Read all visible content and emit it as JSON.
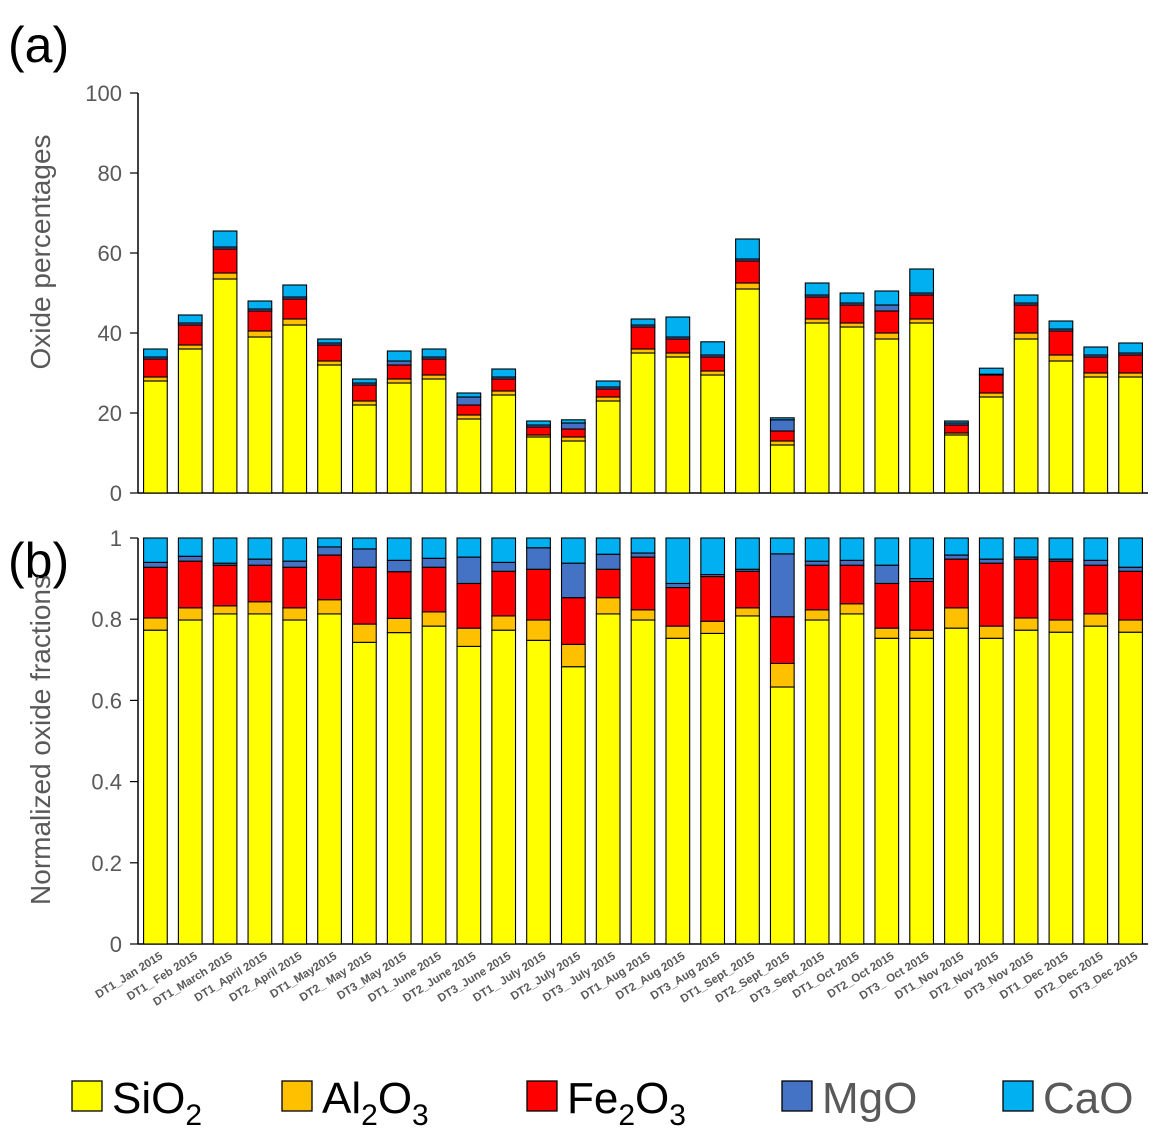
{
  "panel_labels": {
    "a": "(a)",
    "b": "(b)"
  },
  "legend": [
    {
      "label": "SiO",
      "sub": "2",
      "after": "",
      "color": "#FFFF00"
    },
    {
      "label": "Al",
      "sub": "2",
      "after": "O",
      "sub2": "3",
      "color": "#FFC000"
    },
    {
      "label": "Fe",
      "sub": "2",
      "after": "O",
      "sub2": "3",
      "color": "#FF0000"
    },
    {
      "label": "MgO",
      "sub": "",
      "after": "",
      "color": "#4472C4"
    },
    {
      "label": "CaO",
      "sub": "",
      "after": "",
      "color": "#00B0F0"
    }
  ],
  "chart_data": [
    {
      "type": "bar",
      "stacked": true,
      "panel": "(a)",
      "ylabel": "Oxide percentages",
      "xlabel": "",
      "ylim": [
        0,
        100
      ],
      "yticks": [
        0,
        20,
        40,
        60,
        80,
        100
      ],
      "categories": [
        "DT1_Jan 2015",
        "DT1_ Feb 2015",
        "DT1_March 2015",
        "DT1_April 2015",
        "DT2_April 2015",
        "DT1_May2015",
        "DT2_ May 2015",
        "DT3_May 2015",
        "DT1_June 2015",
        "DT2_June 2015",
        "DT3_June 2015",
        "DT1_ July 2015",
        "DT2_July 2015",
        "DT3_ July 2015",
        "DT1_Aug 2015",
        "DT2_Aug 2015",
        "DT3_Aug 2015",
        "DT1_Sept_2015",
        "DT2_Sept_2015",
        "DT3_Sept_2015",
        "DT1_Oct 2015",
        "DT2_Oct 2015",
        "DT3_ Oct 2015",
        "DT1_Nov 2015",
        "DT2_Nov 2015",
        "DT3_Nov 2015",
        "DT1_Dec 2015",
        "DT2_Dec 2015",
        "DT3_Dec 2015"
      ],
      "series": [
        {
          "name": "SiO2",
          "values": [
            28,
            36,
            53.5,
            39,
            42,
            32,
            22,
            27.5,
            28.5,
            18.5,
            24.5,
            14,
            13,
            23,
            35,
            34,
            29.5,
            51,
            12,
            42.5,
            41.5,
            38.5,
            42.5,
            14.5,
            24,
            38.5,
            33,
            29,
            29
          ]
        },
        {
          "name": "Al2O3",
          "values": [
            1,
            1,
            1.5,
            1.5,
            1.5,
            1,
            1,
            1,
            1,
            1,
            1,
            0.5,
            1,
            1,
            1,
            1,
            1,
            1.5,
            1,
            1,
            1,
            1.5,
            1,
            0.5,
            1,
            1.5,
            1.5,
            1,
            1
          ]
        },
        {
          "name": "Fe2O3",
          "values": [
            4.5,
            5,
            6,
            5,
            5,
            4,
            4,
            3.5,
            4,
            2.5,
            3,
            2,
            2,
            2,
            5.5,
            3.5,
            3.5,
            5.5,
            2.5,
            5.5,
            4.5,
            5.5,
            6,
            2,
            4.5,
            7,
            6,
            4,
            4.5
          ]
        },
        {
          "name": "MgO",
          "values": [
            0.5,
            0.5,
            0.5,
            0.5,
            0.5,
            0.5,
            0.5,
            1,
            0.5,
            2,
            0.5,
            0.5,
            1.5,
            0.5,
            0.5,
            0.5,
            0.5,
            0.5,
            2.8,
            0.5,
            0.5,
            1.5,
            0.5,
            0.5,
            0.2,
            0.5,
            0.5,
            0.5,
            0.5
          ]
        },
        {
          "name": "CaO",
          "values": [
            2,
            2,
            4,
            2,
            3,
            1,
            1,
            2.5,
            2,
            1,
            2,
            1,
            0.8,
            1.5,
            1.5,
            5,
            3.3,
            5,
            0.5,
            3,
            2.5,
            3.5,
            6,
            0.5,
            1.5,
            2,
            2,
            2,
            2.5
          ]
        }
      ]
    },
    {
      "type": "bar",
      "stacked": true,
      "panel": "(b)",
      "ylabel": "Normalized oxide fractions",
      "xlabel": "",
      "ylim": [
        0,
        1
      ],
      "yticks": [
        0,
        0.2,
        0.4,
        0.6,
        0.8,
        1
      ],
      "ytick_labels": [
        "0",
        "0.2",
        "0.4",
        "0.6",
        "0.8",
        "1"
      ],
      "categories": [
        "DT1_Jan 2015",
        "DT1_ Feb 2015",
        "DT1_March 2015",
        "DT1_April 2015",
        "DT2_April 2015",
        "DT1_May2015",
        "DT2_ May 2015",
        "DT3_May 2015",
        "DT1_June 2015",
        "DT2_June 2015",
        "DT3_June 2015",
        "DT1_ July 2015",
        "DT2_July 2015",
        "DT3_ July 2015",
        "DT1_Aug 2015",
        "DT2_Aug 2015",
        "DT3_Aug 2015",
        "DT1_Sept_2015",
        "DT2_Sept_2015",
        "DT3_Sept_2015",
        "DT1_Oct 2015",
        "DT2_Oct 2015",
        "DT3_ Oct 2015",
        "DT1_Nov 2015",
        "DT2_Nov 2015",
        "DT3_Nov 2015",
        "DT1_Dec 2015",
        "DT2_Dec 2015",
        "DT3_Dec 2015"
      ],
      "series": [
        {
          "name": "SiO2",
          "values": [
            0.773,
            0.798,
            0.813,
            0.813,
            0.798,
            0.813,
            0.743,
            0.767,
            0.783,
            0.733,
            0.773,
            0.748,
            0.683,
            0.813,
            0.798,
            0.753,
            0.765,
            0.808,
            0.633,
            0.798,
            0.813,
            0.753,
            0.753,
            0.778,
            0.753,
            0.773,
            0.768,
            0.783,
            0.768
          ]
        },
        {
          "name": "Al2O3",
          "values": [
            0.03,
            0.03,
            0.02,
            0.03,
            0.03,
            0.035,
            0.045,
            0.035,
            0.035,
            0.045,
            0.035,
            0.05,
            0.055,
            0.04,
            0.025,
            0.03,
            0.03,
            0.02,
            0.058,
            0.025,
            0.025,
            0.025,
            0.02,
            0.05,
            0.03,
            0.03,
            0.03,
            0.03,
            0.03
          ]
        },
        {
          "name": "Fe2O3",
          "values": [
            0.125,
            0.115,
            0.1,
            0.09,
            0.1,
            0.11,
            0.14,
            0.115,
            0.11,
            0.11,
            0.11,
            0.125,
            0.115,
            0.07,
            0.13,
            0.095,
            0.11,
            0.09,
            0.115,
            0.11,
            0.095,
            0.11,
            0.12,
            0.12,
            0.155,
            0.145,
            0.145,
            0.12,
            0.12
          ]
        },
        {
          "name": "MgO",
          "values": [
            0.012,
            0.012,
            0.005,
            0.015,
            0.015,
            0.02,
            0.045,
            0.028,
            0.022,
            0.065,
            0.022,
            0.053,
            0.085,
            0.037,
            0.01,
            0.01,
            0.005,
            0.005,
            0.155,
            0.01,
            0.012,
            0.045,
            0.007,
            0.01,
            0.01,
            0.005,
            0.005,
            0.012,
            0.01
          ]
        },
        {
          "name": "CaO",
          "values": [
            0.06,
            0.045,
            0.062,
            0.052,
            0.057,
            0.022,
            0.027,
            0.055,
            0.05,
            0.047,
            0.06,
            0.024,
            0.062,
            0.04,
            0.037,
            0.112,
            0.09,
            0.077,
            0.039,
            0.057,
            0.055,
            0.067,
            0.1,
            0.042,
            0.052,
            0.047,
            0.052,
            0.055,
            0.072
          ]
        }
      ]
    }
  ]
}
